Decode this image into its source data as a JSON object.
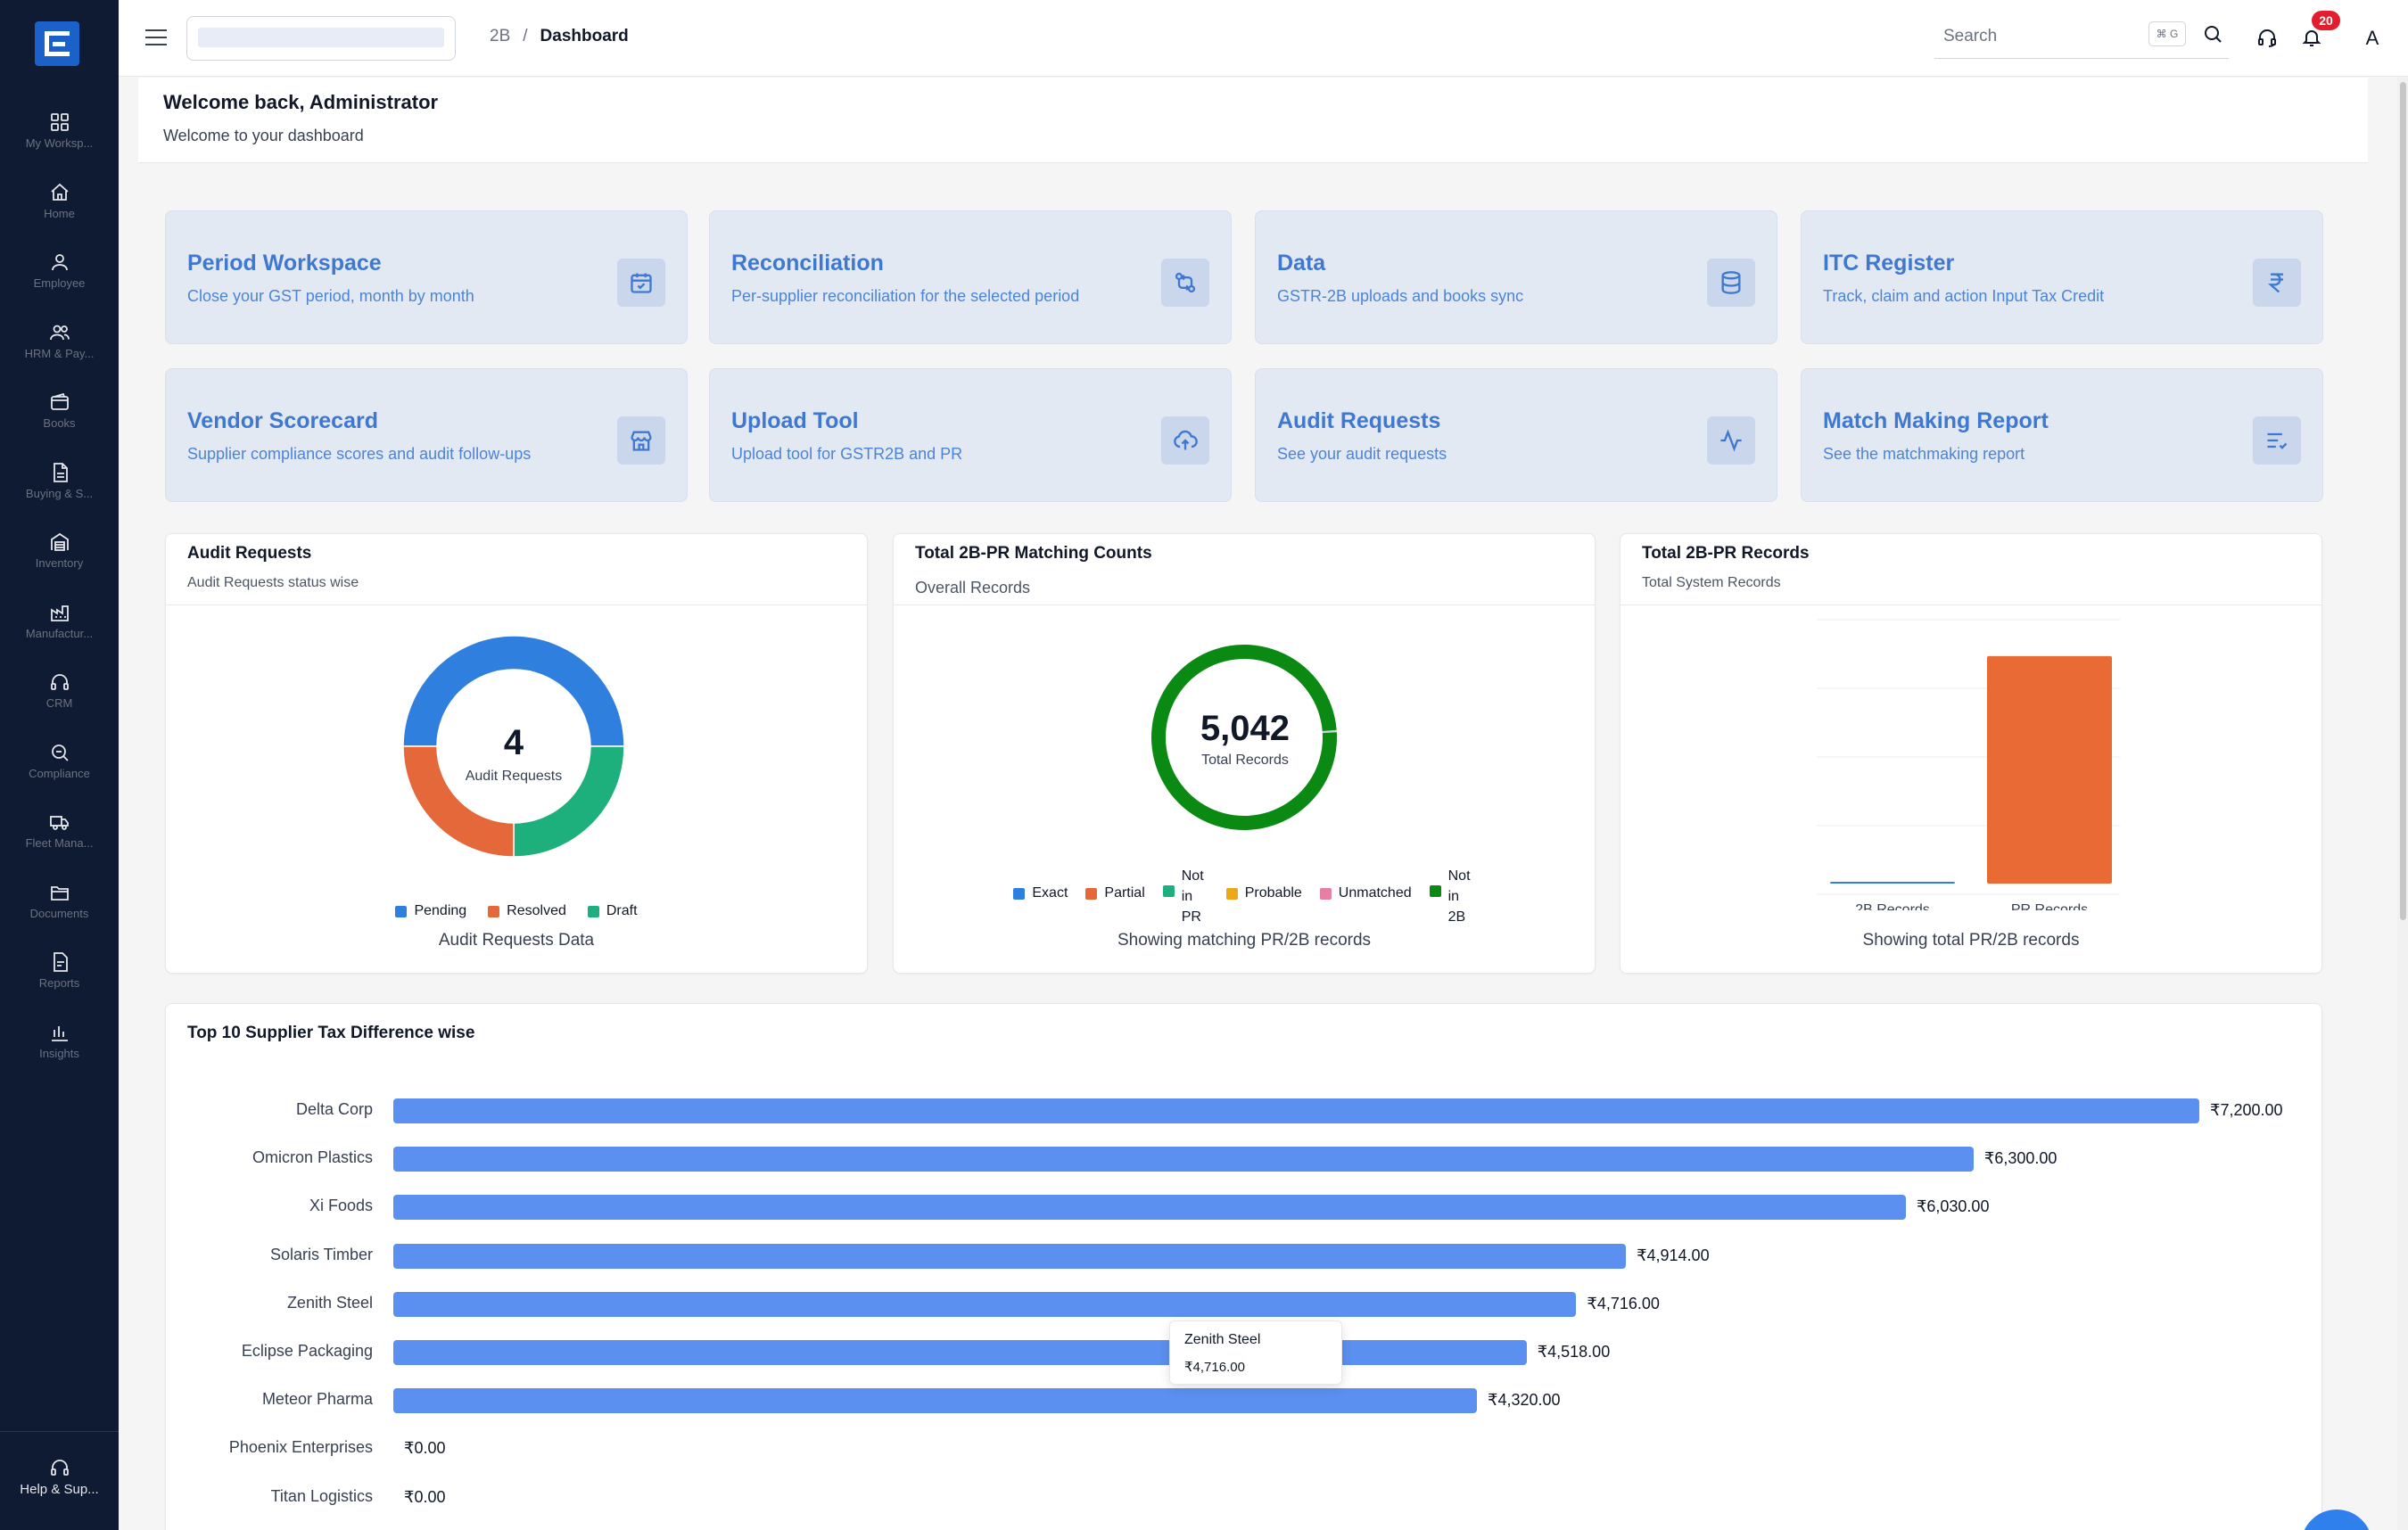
{
  "sidebar": {
    "items": [
      {
        "label": "My Worksp...",
        "icon": "grid-icon"
      },
      {
        "label": "Home",
        "icon": "home-icon"
      },
      {
        "label": "Employee",
        "icon": "user-icon"
      },
      {
        "label": "HRM & Pay...",
        "icon": "users-icon"
      },
      {
        "label": "Books",
        "icon": "wallet-icon"
      },
      {
        "label": "Buying & S...",
        "icon": "document-icon"
      },
      {
        "label": "Inventory",
        "icon": "warehouse-icon"
      },
      {
        "label": "Manufactur...",
        "icon": "factory-icon"
      },
      {
        "label": "CRM",
        "icon": "headset-icon"
      },
      {
        "label": "Compliance",
        "icon": "search-icon"
      },
      {
        "label": "Fleet Mana...",
        "icon": "truck-icon"
      },
      {
        "label": "Documents",
        "icon": "folder-icon"
      },
      {
        "label": "Reports",
        "icon": "report-icon"
      },
      {
        "label": "Insights",
        "icon": "bar-chart-icon"
      }
    ],
    "help_label": "Help & Sup..."
  },
  "topbar": {
    "breadcrumb": [
      "2B",
      "Dashboard"
    ],
    "search_placeholder": "Search",
    "search_shortcut": "⌘ G",
    "notification_count": "20",
    "avatar_initial": "A"
  },
  "welcome": {
    "title": "Welcome back, Administrator",
    "subtitle": "Welcome to your dashboard"
  },
  "cards": [
    {
      "title": "Period Workspace",
      "desc": "Close your GST period, month by month",
      "icon": "calendar-check-icon"
    },
    {
      "title": "Reconciliation",
      "desc": "Per-supplier reconciliation for the selected period",
      "icon": "swap-icon"
    },
    {
      "title": "Data",
      "desc": "GSTR-2B uploads and books sync",
      "icon": "database-icon"
    },
    {
      "title": "ITC Register",
      "desc": "Track, claim and action Input Tax Credit",
      "icon": "rupee-icon"
    },
    {
      "title": "Vendor Scorecard",
      "desc": "Supplier compliance scores and audit follow-ups",
      "icon": "store-icon"
    },
    {
      "title": "Upload Tool",
      "desc": "Upload tool for GSTR2B and PR",
      "icon": "cloud-upload-icon"
    },
    {
      "title": "Audit Requests",
      "desc": "See your audit requests",
      "icon": "activity-icon"
    },
    {
      "title": "Match Making Report",
      "desc": "See the matchmaking report",
      "icon": "list-check-icon"
    }
  ],
  "audit_panel": {
    "title": "Audit Requests",
    "subtitle": "Audit Requests status wise",
    "center_value": "4",
    "center_label": "Audit Requests",
    "legend": [
      "Pending",
      "Resolved",
      "Draft"
    ],
    "caption": "Audit Requests Data"
  },
  "matching_panel": {
    "title": "Total 2B-PR Matching Counts",
    "subtitle": "Overall Records",
    "center_value": "5,042",
    "center_label": "Total Records",
    "legend": [
      "Exact",
      "Partial",
      "Not in PR",
      "Probable",
      "Unmatched",
      "Not in 2B"
    ],
    "caption": "Showing matching PR/2B records"
  },
  "records_panel": {
    "title": "Total 2B-PR Records",
    "subtitle": "Total System Records",
    "caption": "Showing total PR/2B records"
  },
  "supplier_panel": {
    "title": "Top 10 Supplier Tax Difference wise",
    "tooltip_name": "Zenith Steel",
    "tooltip_value": "₹4,716.00"
  },
  "colors": {
    "pending": "#2f7fde",
    "resolved": "#e5683a",
    "draft": "#1eb07c",
    "exact": "#2f7fde",
    "partial": "#e5683a",
    "not_in_pr": "#1eb07c",
    "probable": "#e9a91a",
    "unmatched": "#e77fa5",
    "not_in_2b": "#0a8a12",
    "bar": "#5b8ff0"
  },
  "chart_data": [
    {
      "type": "pie",
      "title": "Audit Requests",
      "categories": [
        "Pending",
        "Resolved",
        "Draft"
      ],
      "values": [
        2,
        1,
        1
      ]
    },
    {
      "type": "pie",
      "title": "Total 2B-PR Matching Counts",
      "categories": [
        "Exact",
        "Partial",
        "Not in PR",
        "Probable",
        "Unmatched",
        "Not in 2B"
      ],
      "values": [
        0,
        0,
        0,
        20,
        0,
        5022
      ]
    },
    {
      "type": "bar",
      "title": "Total 2B-PR Records",
      "categories": [
        "2B Records",
        "PR Records"
      ],
      "values": [
        30,
        5012
      ],
      "ylim": [
        0,
        5500
      ]
    },
    {
      "type": "bar",
      "orientation": "horizontal",
      "title": "Top 10 Supplier Tax Difference wise",
      "categories": [
        "Delta Corp",
        "Omicron Plastics",
        "Xi Foods",
        "Solaris Timber",
        "Zenith Steel",
        "Eclipse Packaging",
        "Meteor Pharma",
        "Phoenix Enterprises",
        "Titan Logistics"
      ],
      "values": [
        7200,
        6300,
        6030,
        4914,
        4716,
        4518,
        4320,
        0,
        0
      ],
      "labels": [
        "₹7,200.00",
        "₹6,300.00",
        "₹6,030.00",
        "₹4,914.00",
        "₹4,716.00",
        "₹4,518.00",
        "₹4,320.00",
        "₹0.00",
        "₹0.00"
      ]
    }
  ]
}
